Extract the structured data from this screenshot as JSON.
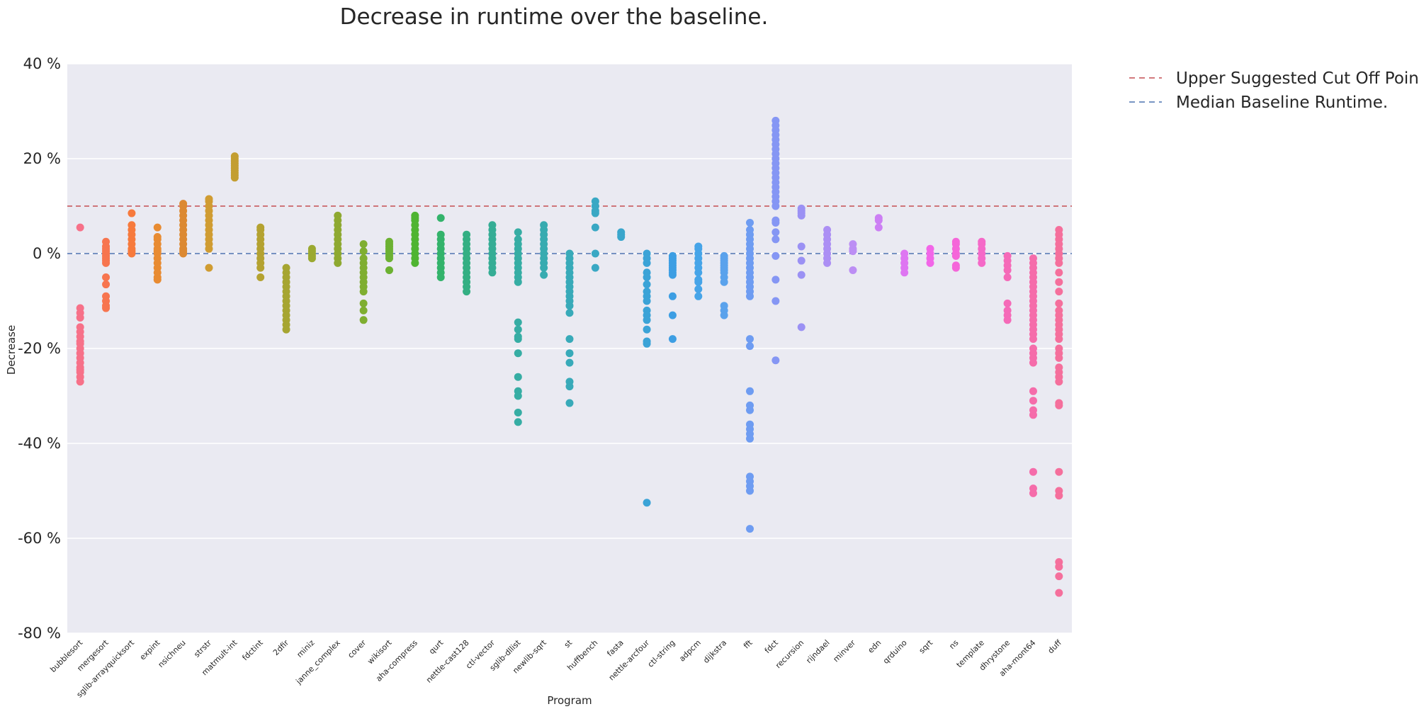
{
  "chart_data": {
    "type": "scatter",
    "title": "Decrease in runtime over the baseline.",
    "xlabel": "Program",
    "ylabel": "Decrease",
    "ylim": [
      -80,
      40
    ],
    "yticks": [
      40,
      20,
      0,
      -20,
      -40,
      -60,
      -80
    ],
    "ytick_labels": [
      "40 %",
      "20 %",
      "0 %",
      "-20 %",
      "-40 %",
      "-60 %",
      "-80 %"
    ],
    "grid": true,
    "legend_position": "outside-top-right",
    "lines": [
      {
        "name": "Upper Suggested Cut Off Point.",
        "y": 10,
        "color": "#c44e52",
        "style": "dashed"
      },
      {
        "name": "Median Baseline Runtime.",
        "y": 0,
        "color": "#4c72b0",
        "style": "dashed"
      }
    ],
    "categories": [
      "bubblesort",
      "mergesort",
      "sglib-arrayquicksort",
      "expint",
      "nsichneu",
      "strstr",
      "matmult-int",
      "fdctint",
      "2dfir",
      "miniz",
      "janne_complex",
      "cover",
      "wikisort",
      "aha-compress",
      "qurt",
      "nettle-cast128",
      "ctl-vector",
      "sglib-dllist",
      "newlib-sqrt",
      "st",
      "huffbench",
      "fasta",
      "nettle-arcfour",
      "ctl-string",
      "adpcm",
      "dijkstra",
      "fft",
      "fdct",
      "recursion",
      "rijndael",
      "minver",
      "edn",
      "qrduino",
      "sqrt",
      "ns",
      "template",
      "dhrystone",
      "aha-mont64",
      "duff"
    ],
    "colors": [
      "#f77189",
      "#f7754f",
      "#f77a3d",
      "#e88b32",
      "#dc8932",
      "#d09c32",
      "#c39e31",
      "#b4a231",
      "#a6a531",
      "#9ba931",
      "#8ea931",
      "#7fae31",
      "#6cb132",
      "#4fb432",
      "#33b36b",
      "#34af83",
      "#35ad95",
      "#36ada4",
      "#37abb0",
      "#38aab9",
      "#39a8c4",
      "#3aa6cc",
      "#3ba3d7",
      "#3d9ee3",
      "#46a4e8",
      "#5aa2ec",
      "#6e9cf2",
      "#8596f4",
      "#9b91f4",
      "#ac8ff4",
      "#bc8ef4",
      "#cc7ff4",
      "#de76f2",
      "#f266e8",
      "#f566d9",
      "#f569c8",
      "#f56ab8",
      "#f56caa",
      "#f56f9c"
    ],
    "series": [
      {
        "name": "bubblesort",
        "values": [
          5.5,
          -11.5,
          -12.5,
          -13.5,
          -15.5,
          -16.5,
          -17.5,
          -18.5,
          -19,
          -20,
          -21,
          -22,
          -23,
          -24,
          -24.5,
          -25,
          -26,
          -27
        ]
      },
      {
        "name": "mergesort",
        "values": [
          2.5,
          1.5,
          1,
          0.5,
          0,
          -0.5,
          -1,
          -1.5,
          -2,
          -5,
          -6.5,
          -9,
          -10,
          -11,
          -11.5
        ]
      },
      {
        "name": "sglib-arrayquicksort",
        "values": [
          8.5,
          6,
          5,
          4,
          3,
          2,
          1,
          0.5,
          0
        ]
      },
      {
        "name": "expint",
        "values": [
          5.5,
          3.5,
          3,
          2,
          1,
          0.5,
          0,
          -1,
          -2,
          -3,
          -4,
          -5,
          -5.5
        ]
      },
      {
        "name": "nsichneu",
        "values": [
          10.5,
          10,
          9,
          8,
          7,
          6,
          5,
          4,
          3,
          2,
          1,
          0.5,
          0
        ]
      },
      {
        "name": "strstr",
        "values": [
          11.5,
          11,
          10,
          9,
          8,
          7,
          6,
          5,
          4,
          3,
          2,
          1,
          -3
        ]
      },
      {
        "name": "matmult-int",
        "values": [
          20.5,
          20,
          19.5,
          19,
          18.5,
          18,
          17.5,
          17,
          16.5,
          16
        ]
      },
      {
        "name": "fdctint",
        "values": [
          5.5,
          5,
          4,
          3,
          2,
          1,
          0,
          -1,
          -2,
          -3,
          -5
        ]
      },
      {
        "name": "2dfir",
        "values": [
          -3,
          -4,
          -5,
          -6,
          -7,
          -8,
          -9,
          -10,
          -11,
          -12,
          -13,
          -14,
          -15,
          -16
        ]
      },
      {
        "name": "miniz",
        "values": [
          1,
          0.5,
          0,
          -0.5,
          -1
        ]
      },
      {
        "name": "janne_complex",
        "values": [
          8,
          7,
          6,
          5,
          4,
          3,
          2,
          1,
          0,
          -1,
          -2
        ]
      },
      {
        "name": "cover",
        "values": [
          2,
          0.5,
          -1,
          -2,
          -3,
          -4,
          -5,
          -6,
          -7,
          -8,
          -10.5,
          -12,
          -14
        ]
      },
      {
        "name": "wikisort",
        "values": [
          2.5,
          2,
          1.5,
          1,
          0.5,
          0,
          -0.5,
          -1,
          -3.5
        ]
      },
      {
        "name": "aha-compress",
        "values": [
          8,
          7.5,
          7,
          6,
          5,
          4,
          3,
          2,
          1,
          0,
          -1,
          -2
        ]
      },
      {
        "name": "qurt",
        "values": [
          7.5,
          4,
          3,
          2,
          1,
          0,
          -1,
          -2,
          -3,
          -4,
          -5
        ]
      },
      {
        "name": "nettle-cast128",
        "values": [
          4,
          3,
          2,
          1,
          0,
          -1,
          -2,
          -3,
          -4,
          -5,
          -6,
          -7,
          -8
        ]
      },
      {
        "name": "ctl-vector",
        "values": [
          6,
          5,
          4,
          3,
          2,
          1,
          0,
          -1,
          -2,
          -3,
          -4
        ]
      },
      {
        "name": "sglib-dllist",
        "values": [
          4.5,
          3,
          2,
          1,
          0,
          -1,
          -2,
          -3,
          -4,
          -5,
          -6,
          -14.5,
          -16,
          -17.5,
          -18,
          -21,
          -26,
          -29,
          -30,
          -33.5,
          -35.5
        ]
      },
      {
        "name": "newlib-sqrt",
        "values": [
          6,
          5,
          4,
          3,
          2,
          1,
          0,
          -1,
          -2,
          -3,
          -4.5
        ]
      },
      {
        "name": "st",
        "values": [
          0,
          -1,
          -2,
          -3,
          -4,
          -5,
          -6,
          -7,
          -8,
          -9,
          -10,
          -11,
          -12.5,
          -18,
          -21,
          -23,
          -27,
          -28,
          -31.5
        ]
      },
      {
        "name": "huffbench",
        "values": [
          11,
          10,
          9,
          8.5,
          5.5,
          0,
          -3
        ]
      },
      {
        "name": "fasta",
        "values": [
          4.5,
          4,
          3.5
        ]
      },
      {
        "name": "nettle-arcfour",
        "values": [
          0,
          -1,
          -2,
          -4,
          -5,
          -6.5,
          -8,
          -9,
          -10,
          -12,
          -13,
          -14,
          -16,
          -18.5,
          -19,
          -52.5
        ]
      },
      {
        "name": "ctl-string",
        "values": [
          -0.5,
          -1,
          -1.5,
          -2,
          -2.5,
          -3,
          -3.5,
          -4,
          -4.5,
          -9,
          -13,
          -18
        ]
      },
      {
        "name": "adpcm",
        "values": [
          1.5,
          1,
          0,
          -1,
          -2,
          -3,
          -4,
          -5.5,
          -6,
          -7.5,
          -9
        ]
      },
      {
        "name": "dijkstra",
        "values": [
          -0.5,
          -1,
          -1.5,
          -2,
          -2.5,
          -3,
          -3.5,
          -4,
          -5,
          -6,
          -11,
          -12,
          -13
        ]
      },
      {
        "name": "fft",
        "values": [
          6.5,
          5,
          4,
          3,
          2,
          1,
          0,
          -1,
          -2,
          -3,
          -4,
          -5,
          -6,
          -7,
          -8,
          -9,
          -18,
          -19.5,
          -29,
          -32,
          -33,
          -36,
          -37,
          -38,
          -39,
          -47,
          -48,
          -49,
          -50,
          -58
        ]
      },
      {
        "name": "fdct",
        "values": [
          28,
          27,
          26,
          25,
          24,
          23,
          22,
          21,
          20,
          19,
          18,
          17,
          16,
          15,
          14,
          13,
          12,
          11,
          10,
          7,
          6.5,
          4.5,
          3,
          -0.5,
          -5.5,
          -10,
          -22.5
        ]
      },
      {
        "name": "recursion",
        "values": [
          9.5,
          9,
          8.5,
          8,
          1.5,
          -1.5,
          -4.5,
          -15.5
        ]
      },
      {
        "name": "rijndael",
        "values": [
          5,
          4,
          3,
          2,
          1,
          0,
          -1,
          -2
        ]
      },
      {
        "name": "minver",
        "values": [
          2,
          1,
          0.5,
          -3.5
        ]
      },
      {
        "name": "edn",
        "values": [
          7.5,
          7,
          5.5
        ]
      },
      {
        "name": "qrduino",
        "values": [
          0,
          -1,
          -2,
          -3,
          -4
        ]
      },
      {
        "name": "sqrt",
        "values": [
          1,
          0,
          -1,
          -2
        ]
      },
      {
        "name": "ns",
        "values": [
          2.5,
          2,
          1,
          0,
          -0.5,
          -2.5,
          -3
        ]
      },
      {
        "name": "template",
        "values": [
          2.5,
          2,
          1,
          0,
          -1,
          -2
        ]
      },
      {
        "name": "dhrystone",
        "values": [
          -0.5,
          -1.5,
          -2.5,
          -3.5,
          -5,
          -10.5,
          -12,
          -13,
          -14
        ]
      },
      {
        "name": "aha-mont64",
        "values": [
          -1,
          -2,
          -3,
          -4,
          -5,
          -6,
          -7,
          -8,
          -9,
          -10,
          -11,
          -12,
          -13,
          -14,
          -15,
          -16,
          -17,
          -18,
          -20,
          -21,
          -22,
          -23,
          -29,
          -31,
          -33,
          -34,
          -46,
          -49.5,
          -50.5
        ]
      },
      {
        "name": "duff",
        "values": [
          5,
          4,
          3,
          2,
          1,
          0,
          -1,
          -2,
          -4,
          -6,
          -8,
          -10.5,
          -12,
          -13,
          -14,
          -15,
          -16,
          -17,
          -18,
          -20,
          -21,
          -22,
          -24,
          -25,
          -26,
          -27,
          -31.5,
          -32,
          -46,
          -50,
          -51,
          -65,
          -66,
          -68,
          -71.5
        ]
      }
    ]
  }
}
